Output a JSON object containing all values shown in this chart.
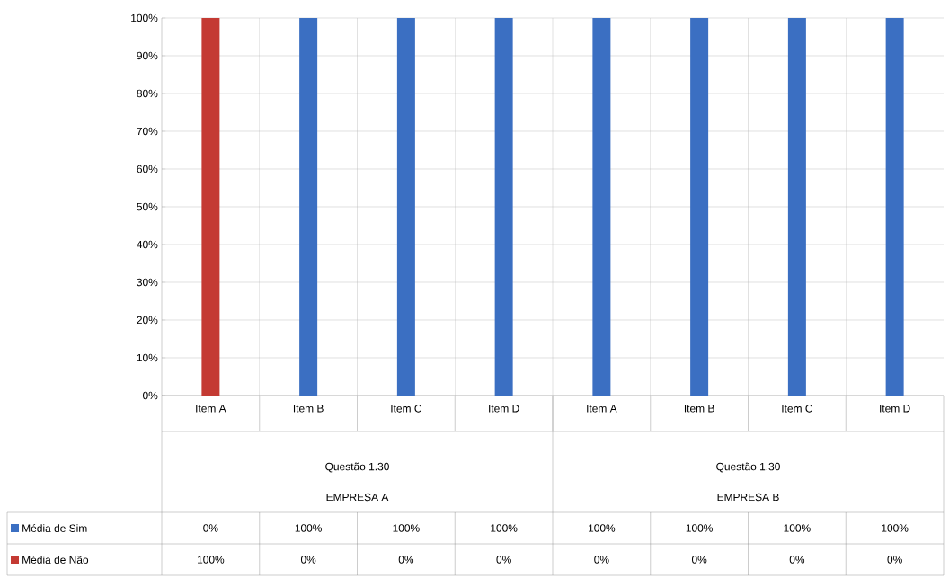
{
  "chart_data": {
    "type": "bar",
    "stacked": true,
    "categories": [
      "Item A",
      "Item B",
      "Item C",
      "Item D",
      "Item A",
      "Item B",
      "Item C",
      "Item D"
    ],
    "series": [
      {
        "name": "Média de Sim",
        "color": "#3b6fc2",
        "values": [
          0,
          100,
          100,
          100,
          100,
          100,
          100,
          100
        ],
        "value_labels": [
          "0%",
          "100%",
          "100%",
          "100%",
          "100%",
          "100%",
          "100%",
          "100%"
        ]
      },
      {
        "name": "Média de Não",
        "color": "#c43a33",
        "values": [
          100,
          0,
          0,
          0,
          0,
          0,
          0,
          0
        ],
        "value_labels": [
          "100%",
          "0%",
          "0%",
          "0%",
          "0%",
          "0%",
          "0%",
          "0%"
        ]
      }
    ],
    "annotations": [
      "Questão 1.30",
      "EMPRESA A",
      "Questão 1.30",
      "EMPRESA B"
    ],
    "ylim": [
      0,
      100
    ],
    "yticks": [
      {
        "value": 0,
        "label": "0%"
      },
      {
        "value": 10,
        "label": "10%"
      },
      {
        "value": 20,
        "label": "20%"
      },
      {
        "value": 30,
        "label": "30%"
      },
      {
        "value": 40,
        "label": "40%"
      },
      {
        "value": 50,
        "label": "50%"
      },
      {
        "value": 60,
        "label": "60%"
      },
      {
        "value": 70,
        "label": "70%"
      },
      {
        "value": 80,
        "label": "80%"
      },
      {
        "value": 90,
        "label": "90%"
      },
      {
        "value": 100,
        "label": "100%"
      }
    ],
    "grid": true,
    "legend": "bottom"
  }
}
